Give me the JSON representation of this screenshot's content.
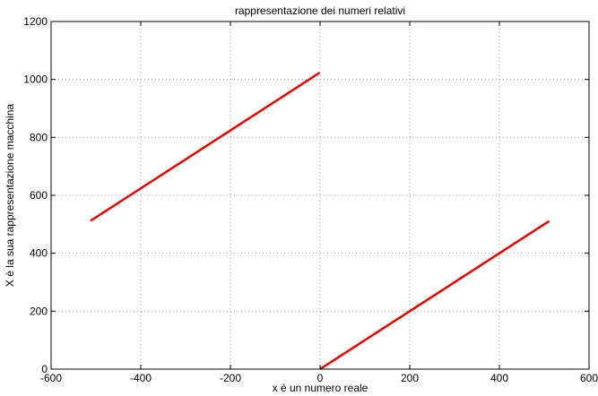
{
  "chart_data": {
    "type": "line",
    "title": "rappresentazione dei numeri relativi",
    "xlabel": "x è un numero reale",
    "ylabel": "X è la sua rappresentazione macchina",
    "xlim": [
      -600,
      600
    ],
    "ylim": [
      0,
      1200
    ],
    "xticks": [
      -600,
      -400,
      -200,
      0,
      200,
      400,
      600
    ],
    "yticks": [
      0,
      200,
      400,
      600,
      800,
      1000,
      1200
    ],
    "xtick_labels": [
      "-600",
      "-400",
      "-200",
      "0",
      "200",
      "400",
      "600"
    ],
    "ytick_labels": [
      "0",
      "200",
      "400",
      "600",
      "800",
      "1000",
      "1200"
    ],
    "grid": true,
    "series": [
      {
        "color": "#dd0000",
        "points": [
          [
            -512,
            512
          ],
          [
            -1,
            1023
          ]
        ]
      },
      {
        "color": "#dd0000",
        "points": [
          [
            0,
            0
          ],
          [
            511,
            511
          ]
        ]
      }
    ]
  }
}
